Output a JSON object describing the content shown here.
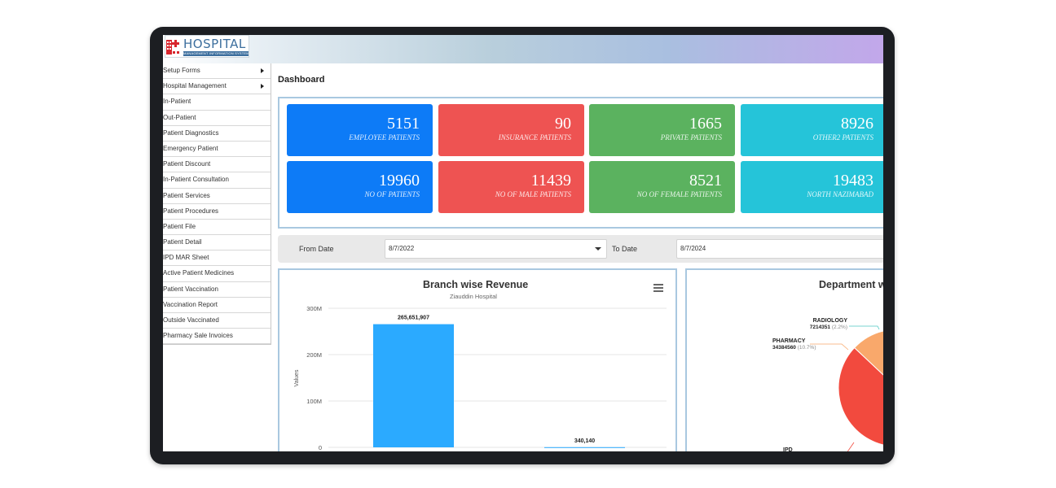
{
  "header": {
    "logo_text": "HOSPITAL",
    "logo_subtitle": "MANAGEMENT INFORMATION SYSTEM"
  },
  "sidebar": {
    "items": [
      {
        "label": "Setup Forms",
        "submenu": true
      },
      {
        "label": "Hospital Management",
        "submenu": true
      },
      {
        "label": "In-Patient",
        "submenu": false
      },
      {
        "label": "Out-Patient",
        "submenu": false
      },
      {
        "label": "Patient Diagnostics",
        "submenu": false
      },
      {
        "label": "Emergency Patient",
        "submenu": false
      },
      {
        "label": "Patient Discount",
        "submenu": false
      },
      {
        "label": "In-Patient Consultation",
        "submenu": false
      },
      {
        "label": "Patient Services",
        "submenu": false
      },
      {
        "label": "Patient Procedures",
        "submenu": false
      },
      {
        "label": "Patient File",
        "submenu": false
      },
      {
        "label": "Patient Detail",
        "submenu": false
      },
      {
        "label": "IPD MAR Sheet",
        "submenu": false
      },
      {
        "label": "Active Patient Medicines",
        "submenu": false
      },
      {
        "label": "Patient Vaccination",
        "submenu": false
      },
      {
        "label": "Vaccination Report",
        "submenu": false
      },
      {
        "label": "Outside Vaccinated",
        "submenu": false
      },
      {
        "label": "Pharmacy Sale Invoices",
        "submenu": false
      }
    ]
  },
  "page": {
    "title": "Dashboard"
  },
  "cards": [
    {
      "value": "5151",
      "label": "EMPLOYEE PATIENTS",
      "color": "#0d7bf7"
    },
    {
      "value": "90",
      "label": "INSURANCE PATIENTS",
      "color": "#ee5352"
    },
    {
      "value": "1665",
      "label": "PRIVATE PATIENTS",
      "color": "#5bb25f"
    },
    {
      "value": "8926",
      "label": "OTHER2 PATIENTS",
      "color": "#25c4d9"
    },
    {
      "value": "19960",
      "label": "NO OF PATIENTS",
      "color": "#0d7bf7"
    },
    {
      "value": "11439",
      "label": "NO OF MALE PATIENTS",
      "color": "#ee5352"
    },
    {
      "value": "8521",
      "label": "NO OF FEMALE PATIENTS",
      "color": "#5bb25f"
    },
    {
      "value": "19483",
      "label": "NORTH NAZIMABAD",
      "color": "#25c4d9"
    }
  ],
  "filters": {
    "from_label": "From Date",
    "from_value": "8/7/2022",
    "to_label": "To Date",
    "to_value": "8/7/2024"
  },
  "chart_data": [
    {
      "type": "bar",
      "title": "Branch wise Revenue",
      "subtitle": "Ziauddin Hospital",
      "ylabel": "Values",
      "ylim": [
        0,
        300000000
      ],
      "ytick_labels": [
        "0",
        "100M",
        "200M",
        "300M"
      ],
      "ytick_values": [
        0,
        100000000,
        200000000,
        300000000
      ],
      "values": [
        265651907,
        340140
      ],
      "value_labels": [
        "265,651,907",
        "340,140"
      ],
      "colors": [
        "#2baaff",
        "#2baaff"
      ]
    },
    {
      "type": "pie",
      "title": "Department w",
      "slices": [
        {
          "name": "RADIOLOGY",
          "value": 7214351,
          "percent_label": "(2.2%)",
          "color": "#4fc9c4"
        },
        {
          "name": "PHARMACY",
          "value": 34384560,
          "percent_label": "(10.7%)",
          "color": "#f9a86b"
        },
        {
          "name": "IPD",
          "value": null,
          "percent_label": "",
          "color": "#f24a3e"
        }
      ]
    }
  ]
}
